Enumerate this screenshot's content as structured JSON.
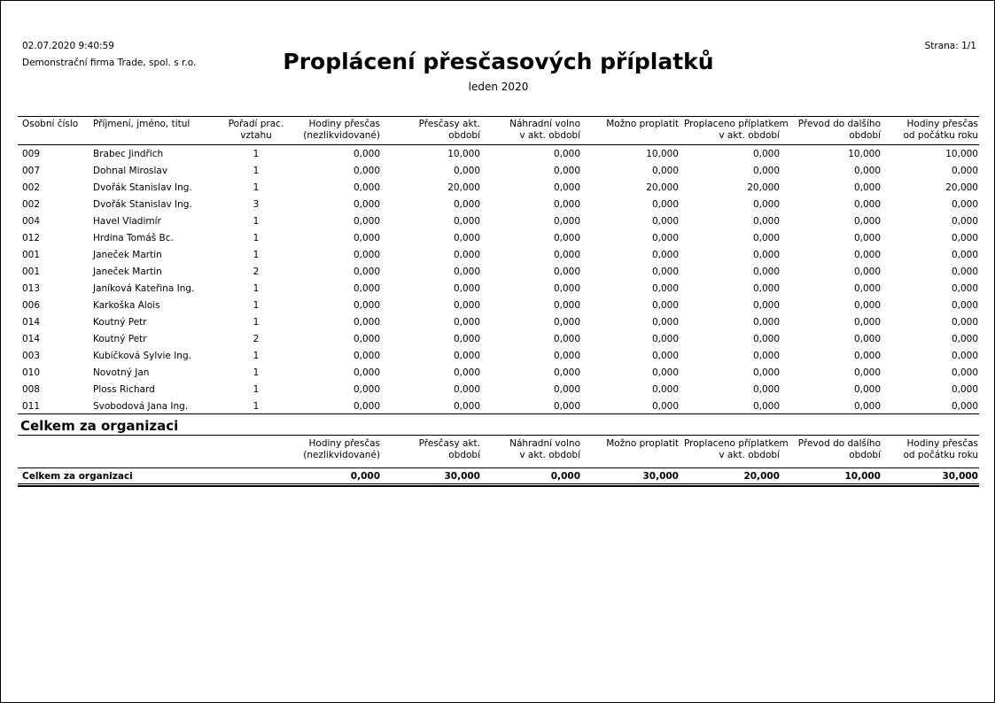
{
  "header": {
    "datetime": "02.07.2020  9:40:59",
    "company": "Demonstrační firma Trade, spol. s r.o.",
    "page": "Strana: 1/1",
    "title": "Proplácení přesčasových příplatků",
    "period": "leden 2020"
  },
  "columns": {
    "c1": "Osobní číslo",
    "c2": "Příjmení, jméno, titul",
    "c3a": "Pořadí prac.",
    "c3b": "vztahu",
    "c4a": "Hodiny přesčas",
    "c4b": "(nezlikvidované)",
    "c5a": "Přesčasy akt.",
    "c5b": "období",
    "c6a": "Náhradní volno",
    "c6b": "v akt. období",
    "c7a": "Možno proplatit",
    "c8a": "Proplaceno příplatkem",
    "c8b": "v akt. období",
    "c9a": "Převod do dalšího",
    "c9b": "období",
    "c10a": "Hodiny přesčas",
    "c10b": "od počátku roku"
  },
  "rows": [
    [
      "009",
      "Brabec Jindřich",
      "1",
      "0,000",
      "10,000",
      "0,000",
      "10,000",
      "0,000",
      "10,000",
      "10,000"
    ],
    [
      "007",
      "Dohnal Miroslav",
      "1",
      "0,000",
      "0,000",
      "0,000",
      "0,000",
      "0,000",
      "0,000",
      "0,000"
    ],
    [
      "002",
      "Dvořák Stanislav Ing.",
      "1",
      "0,000",
      "20,000",
      "0,000",
      "20,000",
      "20,000",
      "0,000",
      "20,000"
    ],
    [
      "002",
      "Dvořák Stanislav Ing.",
      "3",
      "0,000",
      "0,000",
      "0,000",
      "0,000",
      "0,000",
      "0,000",
      "0,000"
    ],
    [
      "004",
      "Havel Vladimír",
      "1",
      "0,000",
      "0,000",
      "0,000",
      "0,000",
      "0,000",
      "0,000",
      "0,000"
    ],
    [
      "012",
      "Hrdina Tomáš Bc.",
      "1",
      "0,000",
      "0,000",
      "0,000",
      "0,000",
      "0,000",
      "0,000",
      "0,000"
    ],
    [
      "001",
      "Janeček Martin",
      "1",
      "0,000",
      "0,000",
      "0,000",
      "0,000",
      "0,000",
      "0,000",
      "0,000"
    ],
    [
      "001",
      "Janeček Martin",
      "2",
      "0,000",
      "0,000",
      "0,000",
      "0,000",
      "0,000",
      "0,000",
      "0,000"
    ],
    [
      "013",
      "Janíková Kateřina Ing.",
      "1",
      "0,000",
      "0,000",
      "0,000",
      "0,000",
      "0,000",
      "0,000",
      "0,000"
    ],
    [
      "006",
      "Karkoška Alois",
      "1",
      "0,000",
      "0,000",
      "0,000",
      "0,000",
      "0,000",
      "0,000",
      "0,000"
    ],
    [
      "014",
      "Koutný Petr",
      "1",
      "0,000",
      "0,000",
      "0,000",
      "0,000",
      "0,000",
      "0,000",
      "0,000"
    ],
    [
      "014",
      "Koutný Petr",
      "2",
      "0,000",
      "0,000",
      "0,000",
      "0,000",
      "0,000",
      "0,000",
      "0,000"
    ],
    [
      "003",
      "Kubíčková Sylvie Ing.",
      "1",
      "0,000",
      "0,000",
      "0,000",
      "0,000",
      "0,000",
      "0,000",
      "0,000"
    ],
    [
      "010",
      "Novotný Jan",
      "1",
      "0,000",
      "0,000",
      "0,000",
      "0,000",
      "0,000",
      "0,000",
      "0,000"
    ],
    [
      "008",
      "Ploss Richard",
      "1",
      "0,000",
      "0,000",
      "0,000",
      "0,000",
      "0,000",
      "0,000",
      "0,000"
    ],
    [
      "011",
      "Svobodová Jana Ing.",
      "1",
      "0,000",
      "0,000",
      "0,000",
      "0,000",
      "0,000",
      "0,000",
      "0,000"
    ]
  ],
  "summary": {
    "heading": "Celkem za organizaci",
    "label": "Celkem za organizaci",
    "values": [
      "0,000",
      "30,000",
      "0,000",
      "30,000",
      "20,000",
      "10,000",
      "30,000"
    ]
  }
}
